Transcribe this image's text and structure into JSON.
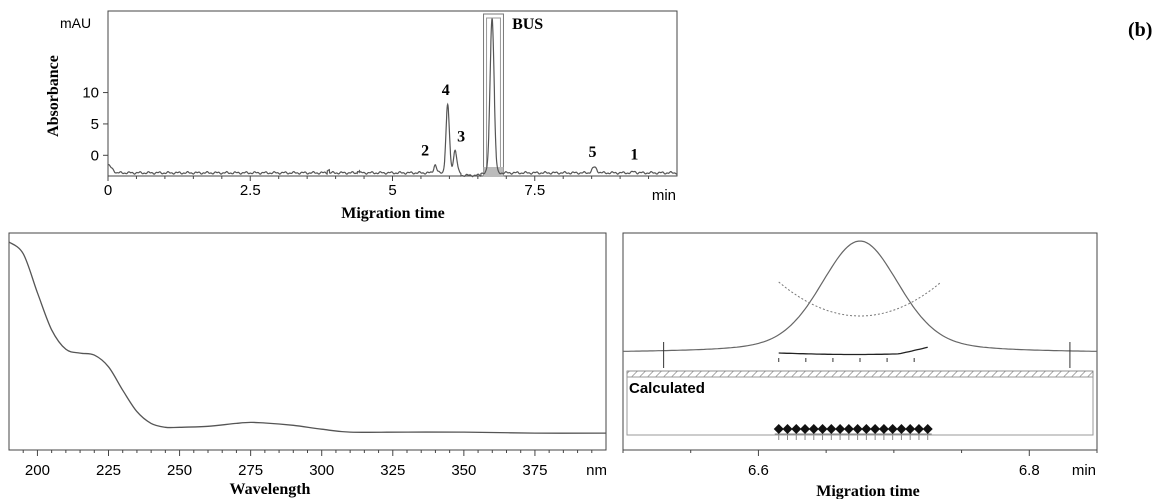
{
  "panel_label": "(b)",
  "chart_data": [
    {
      "type": "line",
      "title": "",
      "xlabel": "Migration time",
      "ylabel": "Absorbance",
      "y_unit": "mAU",
      "x_unit": "min",
      "xlim": [
        0,
        10
      ],
      "ylim": [
        -3.3,
        23
      ],
      "xticks": [
        "0",
        "2.5",
        "5",
        "7.5"
      ],
      "yticks": [
        "0",
        "5",
        "10"
      ],
      "peaks": [
        {
          "label": "2",
          "x": 5.75,
          "y": -1.5
        },
        {
          "label": "4",
          "x": 5.97,
          "y": 8.0
        },
        {
          "label": "3",
          "x": 6.1,
          "y": 0.8
        },
        {
          "label": "BUS",
          "x": 6.75,
          "y": 22.0
        },
        {
          "label": "5",
          "x": 8.55,
          "y": -1.9
        },
        {
          "label": "1",
          "x": 9.25,
          "y": -2.6
        }
      ],
      "baseline": -2.8,
      "highlight": {
        "label": "BUS",
        "x_range": [
          6.6,
          6.95
        ]
      }
    },
    {
      "type": "line",
      "title": "",
      "xlabel": "Wavelength",
      "ylabel": "",
      "x_unit": "nm",
      "xlim": [
        190,
        400
      ],
      "xticks": [
        "200",
        "225",
        "250",
        "275",
        "300",
        "325",
        "350",
        "375"
      ],
      "x": [
        190,
        195,
        200,
        205,
        210,
        215,
        220,
        225,
        230,
        235,
        240,
        245,
        250,
        260,
        270,
        275,
        280,
        290,
        300,
        310,
        330,
        350,
        375,
        400
      ],
      "y": [
        1.0,
        0.94,
        0.74,
        0.55,
        0.45,
        0.43,
        0.42,
        0.36,
        0.24,
        0.13,
        0.07,
        0.05,
        0.05,
        0.055,
        0.07,
        0.075,
        0.072,
        0.06,
        0.04,
        0.025,
        0.025,
        0.025,
        0.02,
        0.02
      ]
    },
    {
      "type": "line",
      "title": "",
      "xlabel": "Migration time",
      "ylabel": "",
      "x_unit": "min",
      "xlim": [
        6.5,
        6.85
      ],
      "xticks": [
        "6.6",
        "6.8"
      ],
      "peak_center": 6.675,
      "peak_sigma": 0.028,
      "purity_label": "Calculated",
      "purity_markers_x": [
        6.615,
        6.625,
        6.635,
        6.645,
        6.655,
        6.665,
        6.675,
        6.685,
        6.695,
        6.705,
        6.715,
        6.725
      ],
      "integration_limits": [
        6.53,
        6.83
      ]
    }
  ]
}
